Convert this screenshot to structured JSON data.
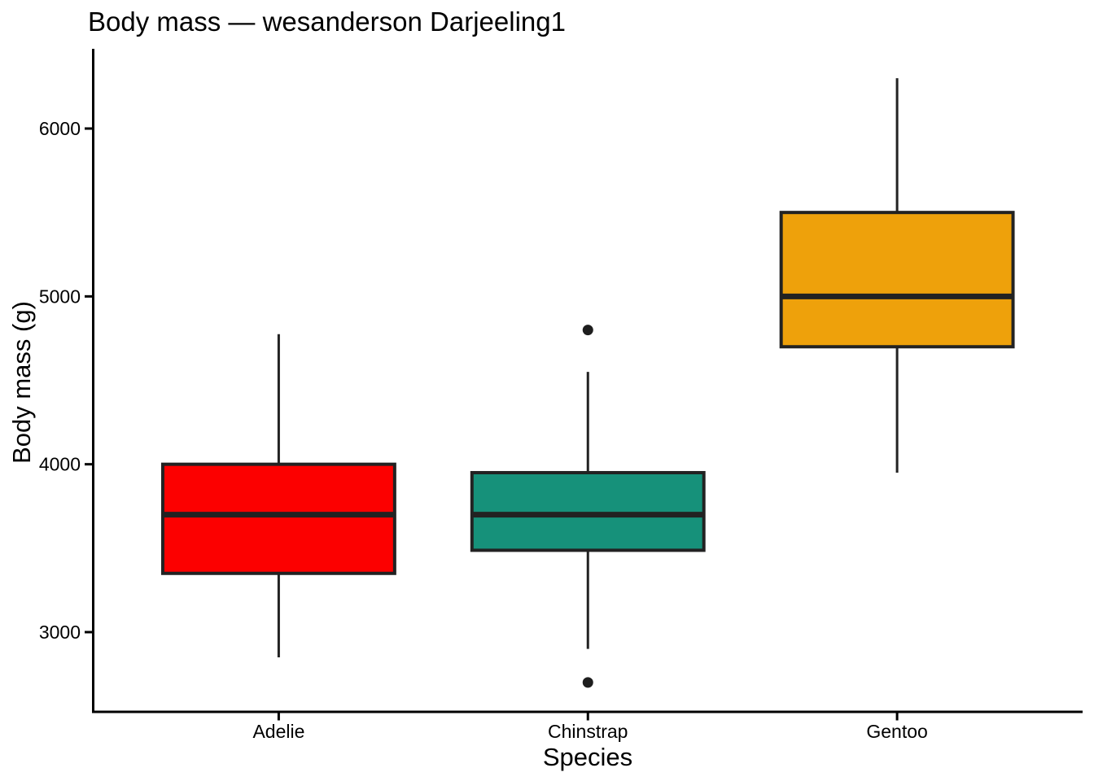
{
  "title": "Body mass — wesanderson Darjeeling1",
  "chart_data": {
    "type": "boxplot",
    "title": "Body mass — wesanderson Darjeeling1",
    "xlabel": "Species",
    "ylabel": "Body mass (g)",
    "categories": [
      "Adelie",
      "Chinstrap",
      "Gentoo"
    ],
    "y_ticks": [
      3000,
      4000,
      5000,
      6000
    ],
    "ylim": [
      2525,
      6475
    ],
    "grid": false,
    "legend": false,
    "axis_color": "#000000",
    "box_border_color": "#222222",
    "outlier_color": "#1e1e1e",
    "series": [
      {
        "name": "Adelie",
        "color": "#fc0000",
        "whisker_low": 2850,
        "q1": 3350,
        "median": 3700,
        "q3": 4000,
        "whisker_high": 4775,
        "outliers": []
      },
      {
        "name": "Chinstrap",
        "color": "#16917a",
        "whisker_low": 2900,
        "q1": 3487.5,
        "median": 3700,
        "q3": 3950,
        "whisker_high": 4550,
        "outliers": [
          2700,
          4800
        ]
      },
      {
        "name": "Gentoo",
        "color": "#eea10b",
        "whisker_low": 3950,
        "q1": 4700,
        "median": 5000,
        "q3": 5500,
        "whisker_high": 6300,
        "outliers": []
      }
    ]
  }
}
